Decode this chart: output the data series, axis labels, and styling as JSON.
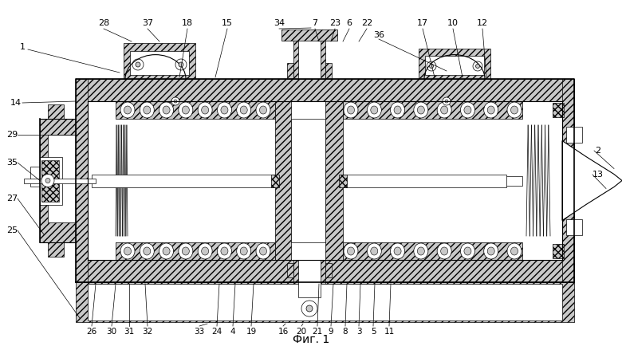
{
  "caption": "Фиг. 1",
  "bg_color": "#ffffff",
  "line_color": "#000000",
  "fig_width": 7.8,
  "fig_height": 4.34,
  "caption_fontsize": 10,
  "label_fontsize": 8.0
}
